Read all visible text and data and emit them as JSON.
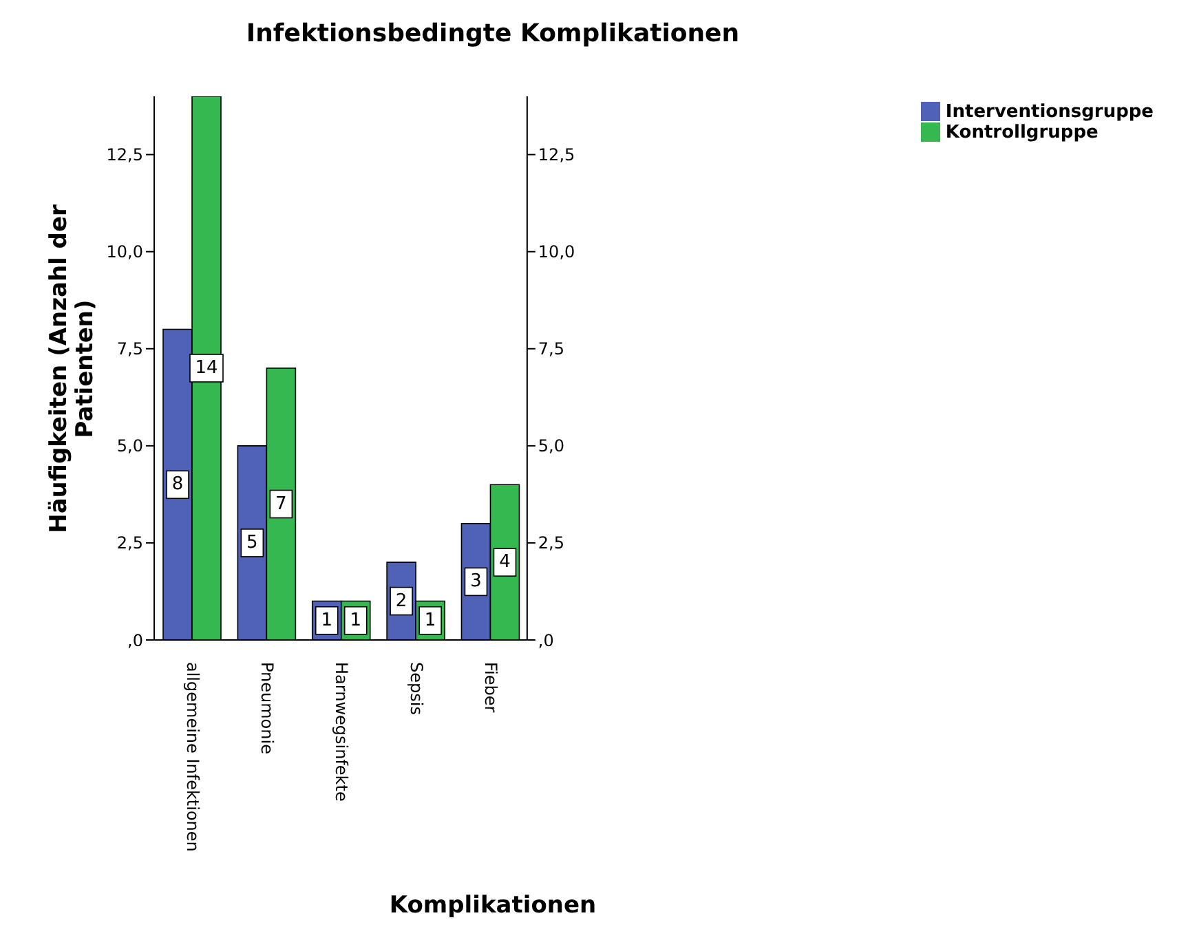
{
  "chart_data": {
    "type": "bar",
    "title": "Infektionsbedingte Komplikationen",
    "xlabel": "Komplikationen",
    "ylabel": "Häufigkeiten (Anzahl der Patienten)",
    "categories": [
      "allgemeine Infektionen",
      "Pneumonie",
      "Harnwegsinfekte",
      "Sepsis",
      "Fieber"
    ],
    "series": [
      {
        "name": "Interventionsgruppe",
        "color": "#4f62b8",
        "values": [
          8,
          5,
          1,
          2,
          3
        ]
      },
      {
        "name": "Kontrollgruppe",
        "color": "#35b84f",
        "values": [
          14,
          7,
          1,
          1,
          4
        ]
      }
    ],
    "ylim": [
      0,
      14
    ],
    "yticks": [
      {
        "value": 0,
        "label": ",0"
      },
      {
        "value": 2.5,
        "label": "2,5"
      },
      {
        "value": 5,
        "label": "5,0"
      },
      {
        "value": 7.5,
        "label": "7,5"
      },
      {
        "value": 10,
        "label": "10,0"
      },
      {
        "value": 12.5,
        "label": "12,5"
      }
    ],
    "y2lim": [
      0,
      14
    ],
    "y2ticks": [
      {
        "value": 0,
        "label": ",0"
      },
      {
        "value": 2.5,
        "label": "2,5"
      },
      {
        "value": 5,
        "label": "5,0"
      },
      {
        "value": 7.5,
        "label": "7,5"
      },
      {
        "value": 10,
        "label": "10,0"
      },
      {
        "value": 12.5,
        "label": "12,5"
      }
    ],
    "data_labels": true,
    "grid": false,
    "legend": "top right"
  }
}
